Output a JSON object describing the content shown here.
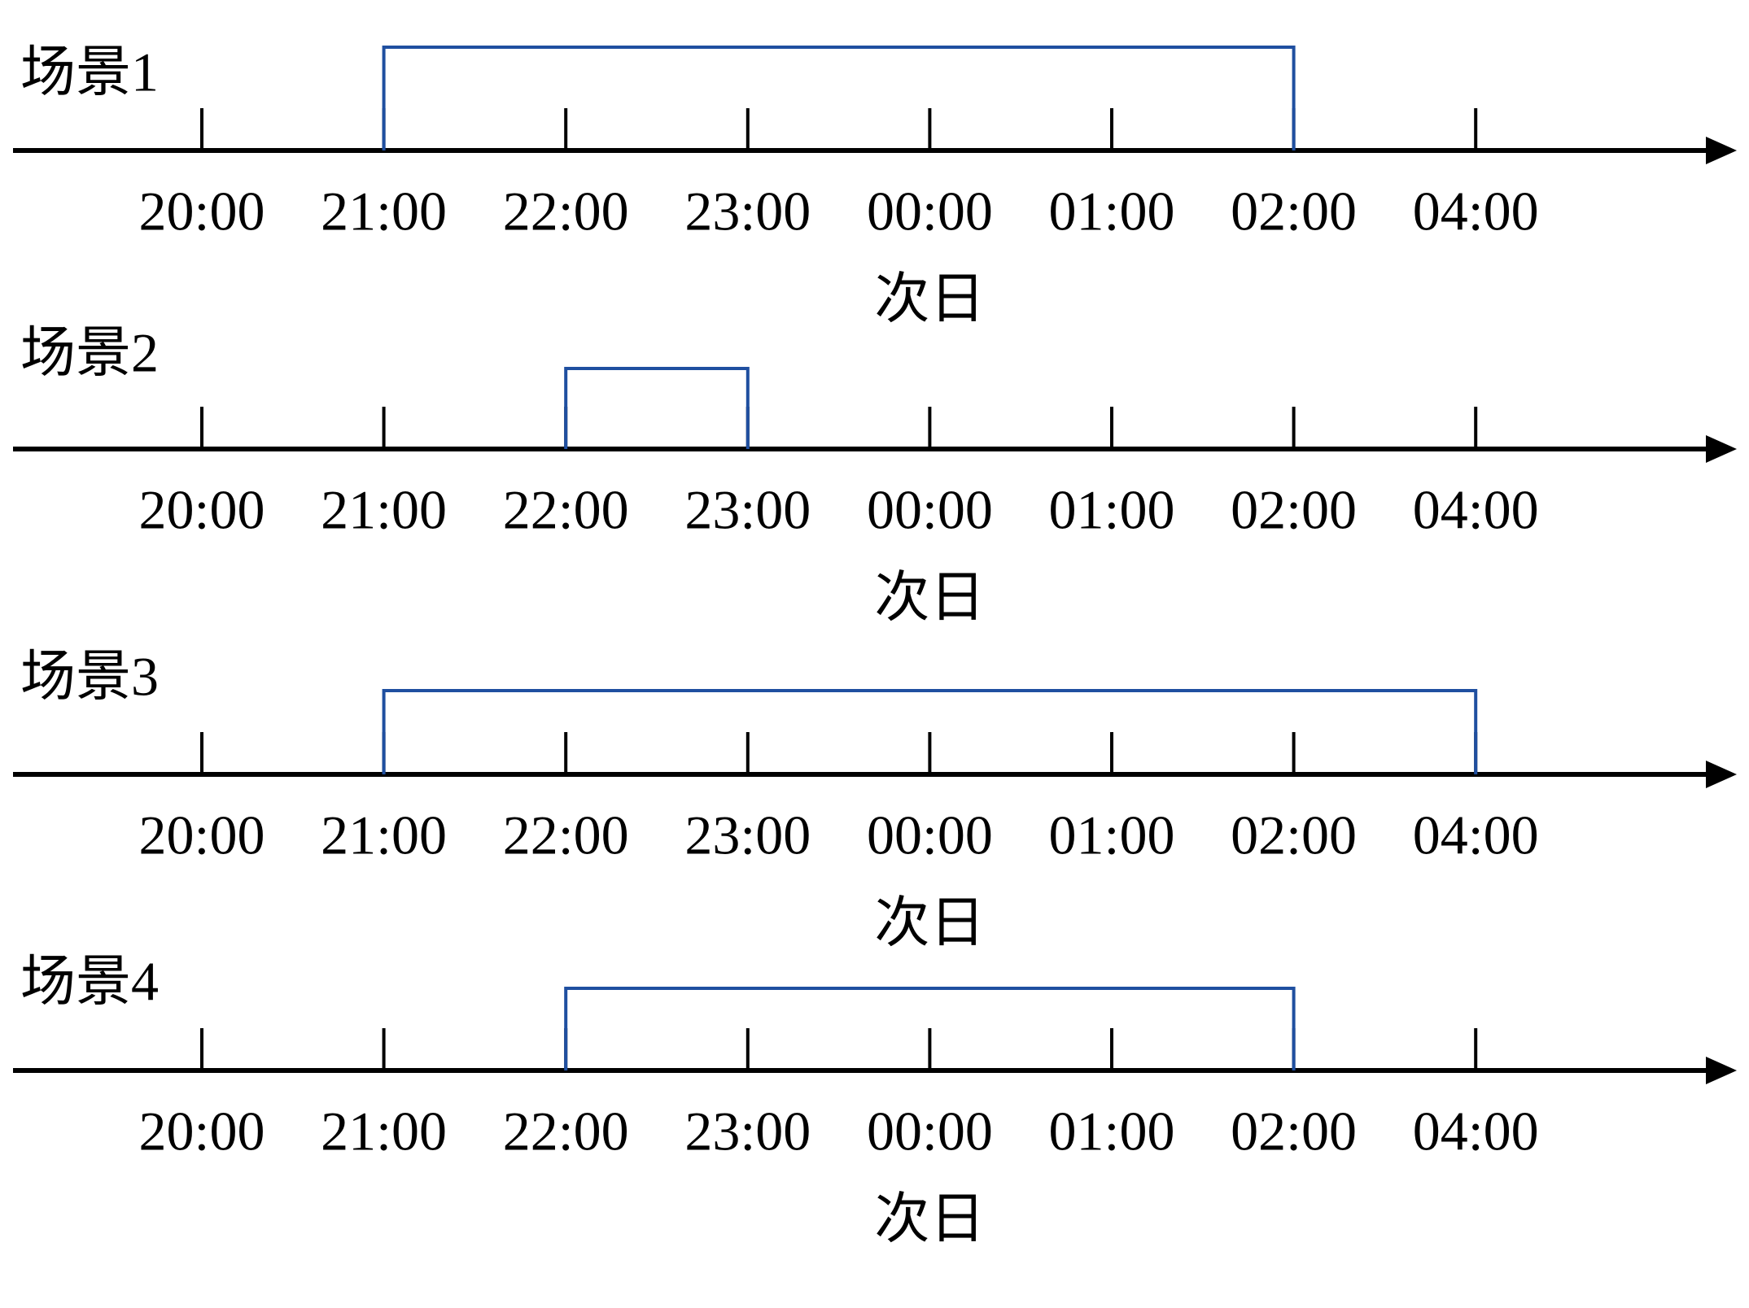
{
  "axis": {
    "ticks": [
      "20:00",
      "21:00",
      "22:00",
      "23:00",
      "00:00",
      "01:00",
      "02:00",
      "04:00"
    ],
    "next_day": "次日"
  },
  "scenarios": [
    {
      "label": "场景1",
      "span": [
        1,
        6
      ]
    },
    {
      "label": "场景2",
      "span": [
        2,
        3
      ]
    },
    {
      "label": "场景3",
      "span": [
        1,
        7
      ]
    },
    {
      "label": "场景4",
      "span": [
        2,
        6
      ]
    }
  ],
  "span_color": "#1f4fa0"
}
